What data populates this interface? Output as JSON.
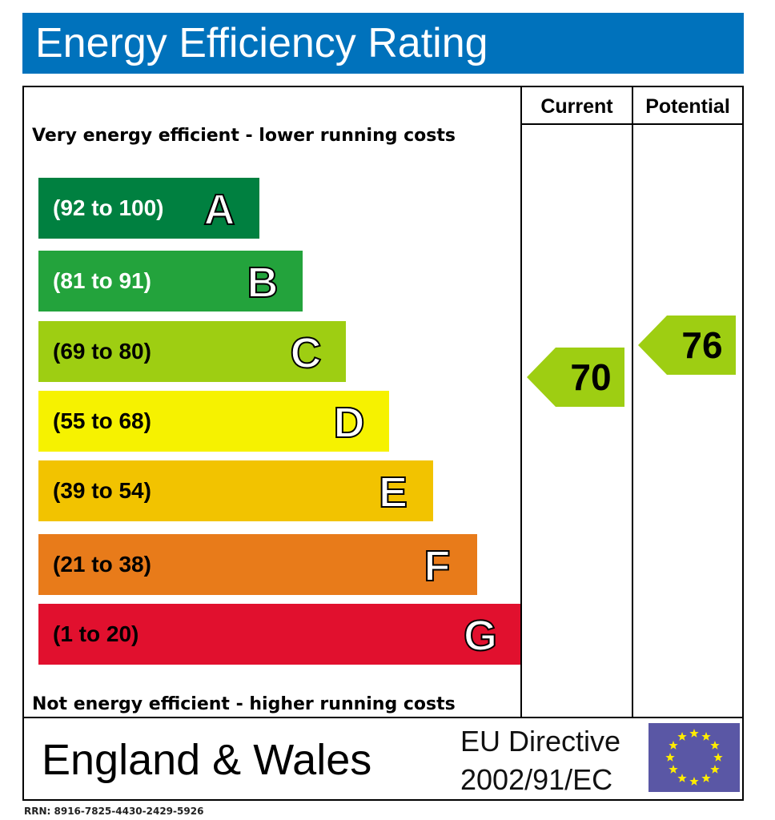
{
  "title": "Energy Efficiency Rating",
  "columns": {
    "current": "Current",
    "potential": "Potential"
  },
  "top_note": "Very energy efficient - lower running costs",
  "bottom_note": "Not energy efficient - higher running costs",
  "chart_data": {
    "type": "bar",
    "categories": [
      "A",
      "B",
      "C",
      "D",
      "E",
      "F",
      "G"
    ],
    "bands": [
      {
        "letter": "A",
        "range": "(92 to 100)",
        "min": 92,
        "max": 100,
        "color": "#008040",
        "range_color": "#ffffff"
      },
      {
        "letter": "B",
        "range": "(81 to 91)",
        "min": 81,
        "max": 91,
        "color": "#23a33c",
        "range_color": "#ffffff"
      },
      {
        "letter": "C",
        "range": "(69 to 80)",
        "min": 69,
        "max": 80,
        "color": "#9ece12",
        "range_color": "#000000"
      },
      {
        "letter": "D",
        "range": "(55 to 68)",
        "min": 55,
        "max": 68,
        "color": "#f6f200",
        "range_color": "#000000"
      },
      {
        "letter": "E",
        "range": "(39 to 54)",
        "min": 39,
        "max": 54,
        "color": "#f2c300",
        "range_color": "#000000"
      },
      {
        "letter": "F",
        "range": "(21 to 38)",
        "min": 21,
        "max": 38,
        "color": "#e87b1a",
        "range_color": "#000000"
      },
      {
        "letter": "G",
        "range": "(1 to 20)",
        "min": 1,
        "max": 20,
        "color": "#e1102e",
        "range_color": "#000000"
      }
    ],
    "current": {
      "value": 70,
      "band": "C",
      "color": "#9ece12"
    },
    "potential": {
      "value": 76,
      "band": "C",
      "color": "#9ece12"
    }
  },
  "footer": {
    "region": "England & Wales",
    "directive_line1": "EU Directive",
    "directive_line2": "2002/91/EC",
    "flag_color": "#5a57a5",
    "star_color": "#ffed00"
  },
  "rrn": "RRN: 8916-7825-4430-2429-5926"
}
